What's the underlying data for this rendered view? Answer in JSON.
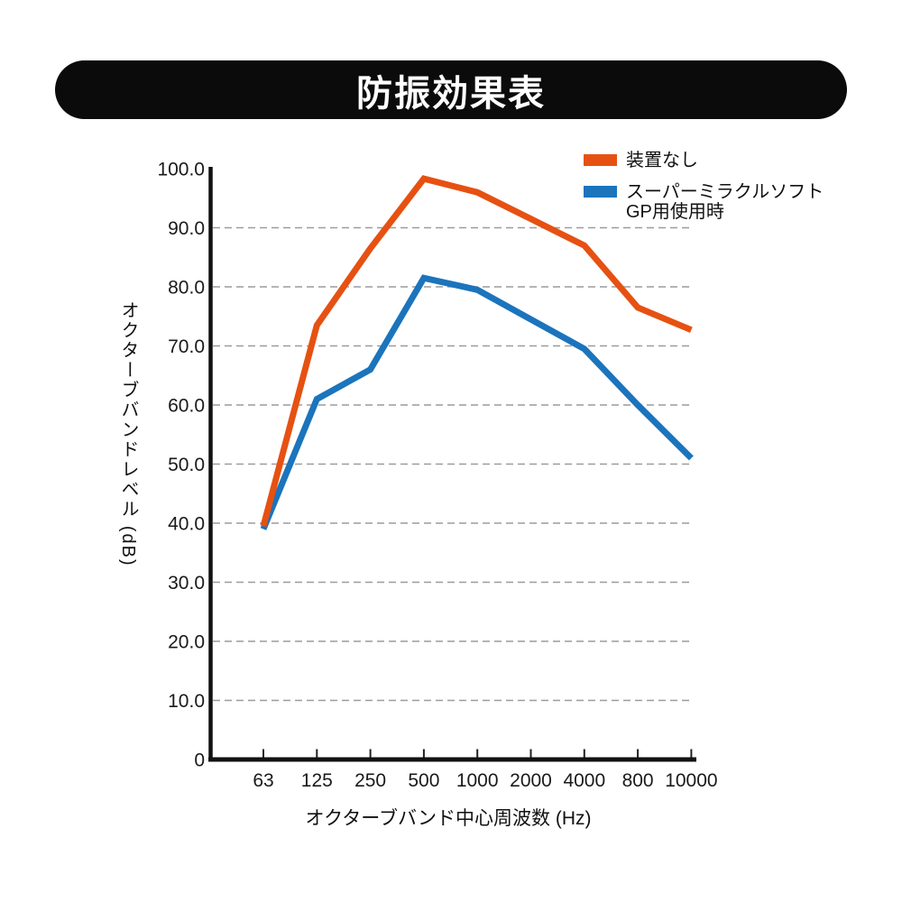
{
  "header": {
    "title": "防振効果表"
  },
  "legend": {
    "items": [
      {
        "label_lines": [
          "装置なし"
        ],
        "color": "#E65112"
      },
      {
        "label_lines": [
          "スーパーミラクルソフト",
          "GP用使用時"
        ],
        "color": "#1B74BC"
      }
    ]
  },
  "axes": {
    "x_title": "オクターブバンド中心周波数 (Hz)",
    "y_title": "オクターブバンドレベル (dB)"
  },
  "chart_data": {
    "type": "line",
    "title": "防振効果表",
    "categories": [
      "63",
      "125",
      "250",
      "500",
      "1000",
      "2000",
      "4000",
      "800",
      "10000"
    ],
    "xlabel": "オクターブバンド中心周波数 (Hz)",
    "ylabel": "オクターブバンドレベル (dB)",
    "ylim": [
      0,
      100
    ],
    "ytick_interval": 10,
    "ytick_labels": [
      "0",
      "10.0",
      "20.0",
      "30.0",
      "40.0",
      "50.0",
      "60.0",
      "70.0",
      "80.0",
      "90.0",
      "100.0"
    ],
    "grid": "horizontal dashed",
    "legend_position": "top-right",
    "series": [
      {
        "name": "装置なし",
        "color": "#E65112",
        "values": [
          39.5,
          73.5,
          86.5,
          98.3,
          96.0,
          91.5,
          87.0,
          76.5,
          72.7
        ]
      },
      {
        "name": "スーパーミラクルソフト GP用使用時",
        "color": "#1B74BC",
        "values": [
          39.0,
          61.0,
          66.0,
          81.5,
          79.5,
          74.5,
          69.5,
          60.0,
          51.0
        ]
      }
    ]
  }
}
